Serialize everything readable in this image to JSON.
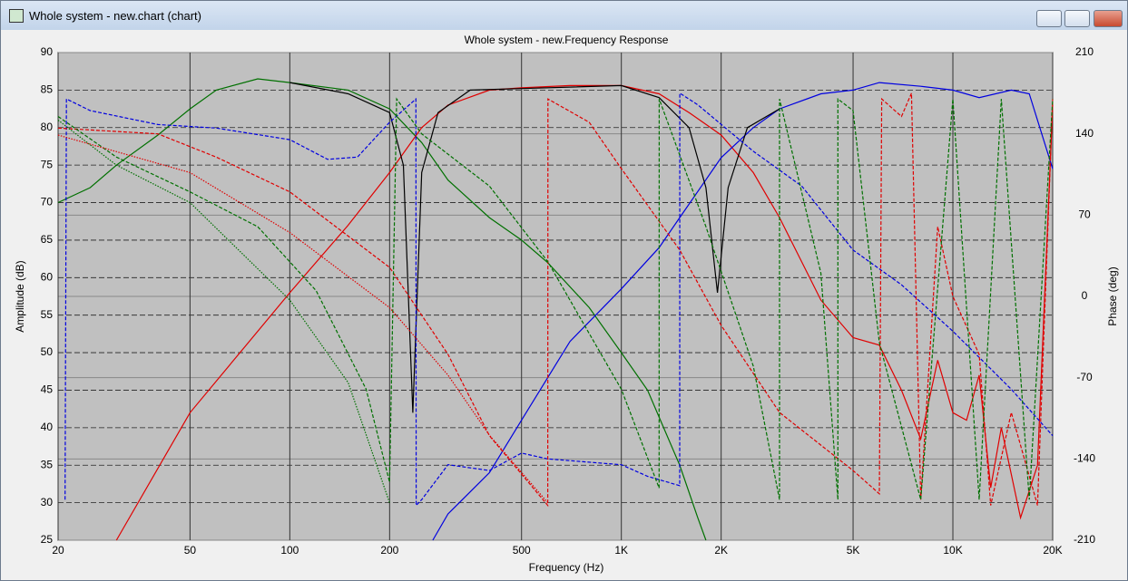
{
  "window": {
    "title": "Whole system - new.chart (chart)"
  },
  "chart_data": {
    "type": "line",
    "title": "Whole system - new.Frequency Response",
    "x_label": "Frequency (Hz)",
    "y_label": "Amplitude (dB)",
    "y2_label": "Phase (deg)",
    "xscale": "log",
    "xlim": [
      20,
      20000
    ],
    "ylim": [
      25,
      90
    ],
    "y2lim": [
      -210,
      210
    ],
    "xticks": [
      20,
      50,
      100,
      200,
      500,
      {
        "value": 1000,
        "label": "1K"
      },
      {
        "value": 2000,
        "label": "2K"
      },
      {
        "value": 5000,
        "label": "5K"
      },
      {
        "value": 10000,
        "label": "10K"
      },
      {
        "value": 20000,
        "label": "20K"
      }
    ],
    "yticks": [
      25,
      30,
      35,
      40,
      45,
      50,
      55,
      60,
      65,
      70,
      75,
      80,
      85,
      90
    ],
    "y2ticks": [
      -210,
      -140,
      -70,
      0,
      70,
      140,
      210
    ],
    "grid": true,
    "background": "#c0c0c0",
    "series": [
      {
        "color": "#007000",
        "line_style": "solid",
        "axis": "y",
        "x": [
          20,
          25,
          30,
          40,
          50,
          60,
          80,
          100,
          150,
          200,
          250,
          300,
          400,
          500,
          600,
          800,
          1000,
          1200,
          1500,
          1700,
          1800
        ],
        "values": [
          70,
          72,
          75,
          79,
          82.5,
          85,
          86.5,
          86,
          85,
          82.5,
          78,
          73,
          68,
          65,
          62,
          56,
          50,
          45,
          35,
          28,
          25
        ]
      },
      {
        "color": "#e00000",
        "line_style": "solid",
        "axis": "y",
        "x": [
          30,
          50,
          100,
          150,
          200,
          250,
          300,
          400,
          500,
          700,
          1000,
          1300,
          1600,
          2000,
          2500,
          3000,
          4000,
          5000,
          6000,
          7000,
          8000,
          9000,
          10000,
          11000,
          12000,
          13000,
          14000,
          16000,
          18000,
          20000
        ],
        "values": [
          25,
          42,
          58,
          67,
          74,
          80,
          83,
          85,
          85.3,
          85.6,
          85.6,
          84.5,
          82,
          79,
          74,
          68,
          57,
          52,
          51,
          45,
          38.5,
          49,
          42,
          41,
          47,
          32,
          40,
          28,
          35,
          83
        ]
      },
      {
        "color": "#0000e0",
        "line_style": "solid",
        "axis": "y",
        "x": [
          270,
          300,
          400,
          500,
          700,
          1000,
          1300,
          1500,
          2000,
          2500,
          3000,
          4000,
          5000,
          6000,
          8000,
          10000,
          12000,
          15000,
          17000,
          20000
        ],
        "values": [
          25,
          28.5,
          34,
          41,
          51.5,
          58.5,
          64,
          68,
          76,
          80,
          82.5,
          84.5,
          85,
          86,
          85.5,
          85,
          84,
          85,
          84.5,
          74.5
        ]
      },
      {
        "color": "#000000",
        "line_style": "solid",
        "axis": "y",
        "x": [
          100,
          150,
          200,
          220,
          235,
          250,
          280,
          350,
          500,
          1000,
          1300,
          1600,
          1800,
          1950,
          2100,
          2400,
          3000
        ],
        "values": [
          86,
          84.5,
          82,
          75,
          42,
          74,
          82,
          85,
          85.2,
          85.6,
          84,
          80,
          72,
          58,
          72,
          80,
          82.5
        ]
      },
      {
        "color": "#0000e0",
        "line_style": "dashed",
        "axis": "y2",
        "x": [
          21,
          21.2,
          25,
          40,
          60,
          100,
          130,
          160,
          200,
          240,
          240.5,
          250,
          300,
          400,
          500,
          600,
          1000,
          1200,
          1500,
          1500.5,
          1700,
          2500,
          3500,
          5000,
          7000,
          10000,
          15000,
          20000
        ],
        "values": [
          -175,
          170,
          160,
          148,
          145,
          135,
          118,
          120,
          150,
          170,
          -180,
          -175,
          -145,
          -150,
          -135,
          -140,
          -145,
          -155,
          -163,
          175,
          165,
          125,
          95,
          40,
          10,
          -30,
          -80,
          -120
        ]
      },
      {
        "color": "#e00000",
        "line_style": "dashed",
        "axis": "y2",
        "x": [
          20,
          40,
          60,
          100,
          200,
          300,
          400,
          600,
          600.5,
          800,
          1000,
          1500,
          2000,
          3000,
          5000,
          6000,
          6100,
          7000,
          7500,
          8000,
          9000,
          10000,
          12000,
          13000,
          15000,
          18000,
          20000
        ],
        "values": [
          145,
          140,
          120,
          90,
          25,
          -50,
          -120,
          -180,
          170,
          150,
          110,
          40,
          -25,
          -100,
          -150,
          -170,
          170,
          155,
          175,
          -175,
          60,
          0,
          -50,
          -180,
          -100,
          -180,
          170
        ]
      },
      {
        "color": "#007000",
        "line_style": "dashed",
        "axis": "y2",
        "x": [
          20,
          30,
          50,
          80,
          120,
          170,
          200,
          210,
          250,
          400,
          600,
          1000,
          1300,
          1300.5,
          1800,
          2500,
          3000,
          3000.5,
          4000,
          4500,
          4500.5,
          5000,
          6000,
          8000,
          10000,
          12000,
          14000,
          17000,
          20000
        ],
        "values": [
          155,
          120,
          90,
          60,
          5,
          -80,
          -160,
          170,
          140,
          95,
          30,
          -80,
          -165,
          170,
          60,
          -60,
          -175,
          170,
          20,
          -175,
          170,
          160,
          -40,
          -175,
          170,
          -175,
          170,
          -175,
          170
        ]
      },
      {
        "color": "#007000",
        "line_style": "dotted",
        "axis": "y",
        "x": [
          20,
          30,
          50,
          100,
          150,
          200
        ],
        "values": [
          81,
          75,
          70,
          57,
          46,
          30
        ]
      },
      {
        "color": "#e00000",
        "line_style": "dotted",
        "axis": "y",
        "x": [
          20,
          50,
          100,
          200,
          300,
          400,
          600
        ],
        "values": [
          79,
          74,
          66,
          56,
          47,
          39,
          30
        ]
      }
    ]
  }
}
